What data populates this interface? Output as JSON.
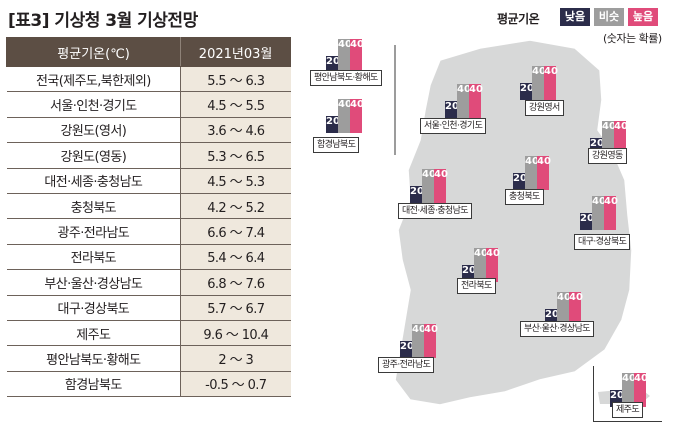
{
  "title": "[표3] 기상청 3월 기상전망",
  "table": {
    "headers": [
      "평균기온(℃)",
      "2021년03월"
    ],
    "rows": [
      {
        "region": "전국(제주도,북한제외)",
        "range": "5.5 ～ 6.3"
      },
      {
        "region": "서울·인천·경기도",
        "range": "4.5 ～ 5.5"
      },
      {
        "region": "강원도(영서)",
        "range": "3.6 ～ 4.6"
      },
      {
        "region": "강원도(영동)",
        "range": "5.3 ～ 6.5"
      },
      {
        "region": "대전·세종·충청남도",
        "range": "4.5 ～ 5.3"
      },
      {
        "region": "충청북도",
        "range": "4.2 ～ 5.2"
      },
      {
        "region": "광주·전라남도",
        "range": "6.6 ～ 7.4"
      },
      {
        "region": "전라북도",
        "range": "5.4 ～ 6.4"
      },
      {
        "region": "부산·울산·경상남도",
        "range": "6.8 ～ 7.6"
      },
      {
        "region": "대구·경상북도",
        "range": "5.7 ～ 6.7"
      },
      {
        "region": "제주도",
        "range": "9.6 ～ 10.4"
      },
      {
        "region": "평안남북도·황해도",
        "range": "2 ～ 3"
      },
      {
        "region": "함경남북도",
        "range": "-0.5 ～ 0.7"
      }
    ]
  },
  "legend": {
    "title": "평균기온",
    "low": "낮음",
    "normal": "비슷",
    "high": "높음",
    "note": "(숫자는 확률)",
    "colors": {
      "low": "#2b2c4a",
      "normal": "#9d9d9d",
      "high": "#e04b7a"
    }
  },
  "chart_data": {
    "type": "bar",
    "categories_meaning": "Probability (%) of below-normal / near-normal / above-normal mean temperature",
    "series_names": [
      "낮음",
      "비슷",
      "높음"
    ],
    "regions": [
      {
        "name": "평안남북도·황해도",
        "values": [
          20,
          40,
          40
        ]
      },
      {
        "name": "함경남북도",
        "values": [
          20,
          40,
          40
        ]
      },
      {
        "name": "서울·인천·경기도",
        "values": [
          20,
          40,
          40
        ]
      },
      {
        "name": "강원영서",
        "values": [
          20,
          40,
          40
        ]
      },
      {
        "name": "강원영동",
        "values": [
          20,
          40,
          40
        ]
      },
      {
        "name": "충청북도",
        "values": [
          20,
          40,
          40
        ]
      },
      {
        "name": "대전·세종·충청남도",
        "values": [
          20,
          40,
          40
        ]
      },
      {
        "name": "대구·경상북도",
        "values": [
          20,
          40,
          40
        ]
      },
      {
        "name": "전라북도",
        "values": [
          20,
          40,
          40
        ]
      },
      {
        "name": "부산·울산·경상남도",
        "values": [
          20,
          40,
          40
        ]
      },
      {
        "name": "광주·전라남도",
        "values": [
          20,
          40,
          40
        ]
      },
      {
        "name": "제주도",
        "values": [
          20,
          40,
          40
        ]
      }
    ]
  }
}
